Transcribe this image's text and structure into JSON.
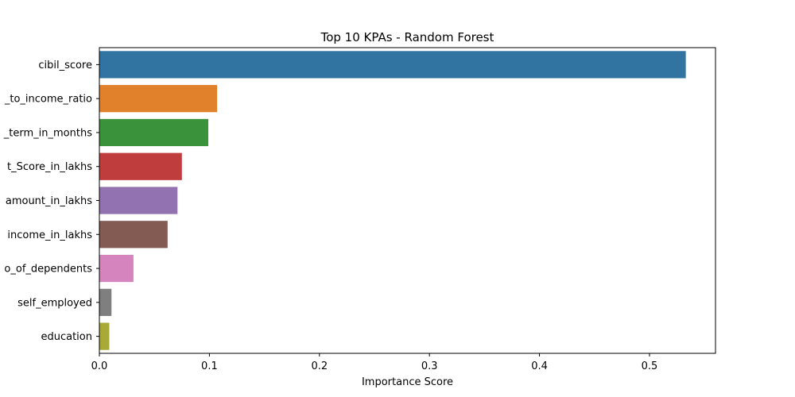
{
  "chart_data": {
    "type": "bar",
    "orientation": "horizontal",
    "title": "Top 10 KPAs - Random Forest",
    "xlabel": "Importance Score",
    "ylabel": "",
    "xlim": [
      0,
      0.56
    ],
    "xticks": [
      0.0,
      0.1,
      0.2,
      0.3,
      0.4,
      0.5
    ],
    "xtick_labels": [
      "0.0",
      "0.1",
      "0.2",
      "0.3",
      "0.4",
      "0.5"
    ],
    "grid": false,
    "categories": [
      "cibil_score",
      "_to_income_ratio",
      "_term_in_months",
      "t_Score_in_lakhs",
      "amount_in_lakhs",
      "income_in_lakhs",
      "o_of_dependents",
      "self_employed",
      "education"
    ],
    "values": [
      0.533,
      0.107,
      0.099,
      0.075,
      0.071,
      0.062,
      0.031,
      0.011,
      0.009
    ],
    "colors": [
      "#3274a1",
      "#e1812c",
      "#3a923a",
      "#c03d3e",
      "#9372b2",
      "#845b53",
      "#d684bd",
      "#7f7f7f",
      "#a9aa35"
    ]
  }
}
